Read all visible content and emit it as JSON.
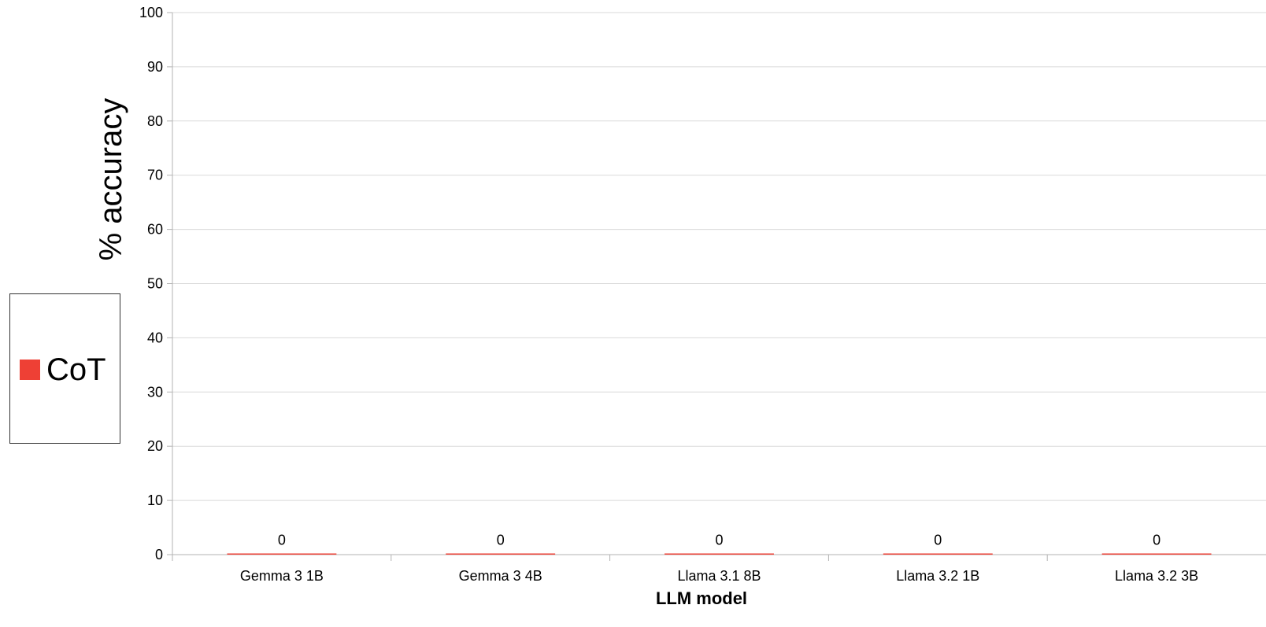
{
  "chart_data": {
    "type": "bar",
    "categories": [
      "Gemma 3 1B",
      "Gemma 3 4B",
      "Llama 3.1 8B",
      "Llama 3.2 1B",
      "Llama 3.2 3B"
    ],
    "series": [
      {
        "name": "CoT",
        "values": [
          0,
          0,
          0,
          0,
          0
        ],
        "color": "#ee4035"
      }
    ],
    "data_labels": [
      "0",
      "0",
      "0",
      "0",
      "0"
    ],
    "xlabel": "LLM model",
    "ylabel": "% accuracy",
    "ylim": [
      0,
      100
    ],
    "yticks": [
      0,
      10,
      20,
      30,
      40,
      50,
      60,
      70,
      80,
      90,
      100
    ],
    "grid": true,
    "legend_position": "left"
  }
}
